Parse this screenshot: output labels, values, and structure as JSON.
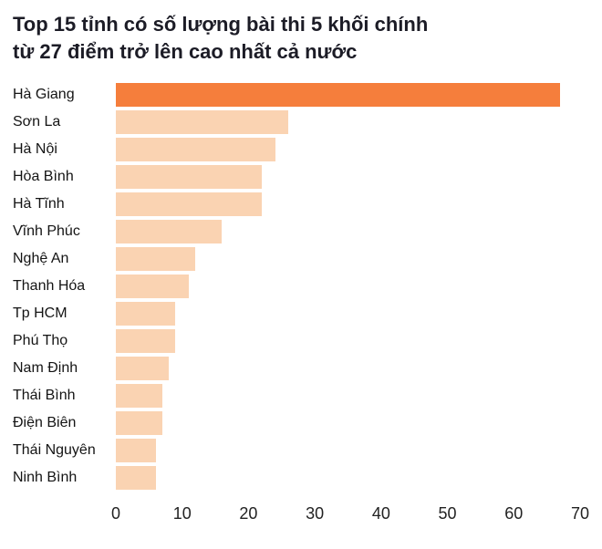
{
  "title": {
    "text": "Top 15 tỉnh có số lượng bài thi 5 khối chính từ 27 điểm trở lên cao nhất cả nước",
    "lines": [
      "Top 15 tỉnh có số lượng bài thi 5 khối chính",
      "từ 27 điểm trở lên cao nhất cả nước"
    ]
  },
  "chart_data": {
    "type": "bar",
    "orientation": "horizontal",
    "title": "Top 15 tỉnh có số lượng bài thi 5 khối chính từ 27 điểm trở lên cao nhất cả nước",
    "categories": [
      "Hà Giang",
      "Sơn La",
      "Hà Nội",
      "Hòa Bình",
      "Hà Tĩnh",
      "Vĩnh Phúc",
      "Nghệ An",
      "Thanh Hóa",
      "Tp HCM",
      "Phú Thọ",
      "Nam Định",
      "Thái Bình",
      "Điện Biên",
      "Thái Nguyên",
      "Ninh Bình"
    ],
    "values": [
      67,
      26,
      24,
      22,
      22,
      16,
      12,
      11,
      9,
      9,
      8,
      7,
      7,
      6,
      6
    ],
    "xlabel": "",
    "ylabel": "",
    "xlim": [
      0,
      70
    ],
    "x_ticks": [
      0,
      10,
      20,
      30,
      40,
      50,
      60,
      70
    ],
    "grid": false,
    "legend": false,
    "highlight_category": "Hà Giang",
    "colors": {
      "highlight_bar": "#f57e3c",
      "normal_bar": "#fad3b2",
      "title_text": "#1c1c26",
      "label_text": "#141414",
      "axis_text": "#222222",
      "background": "#ffffff"
    }
  }
}
